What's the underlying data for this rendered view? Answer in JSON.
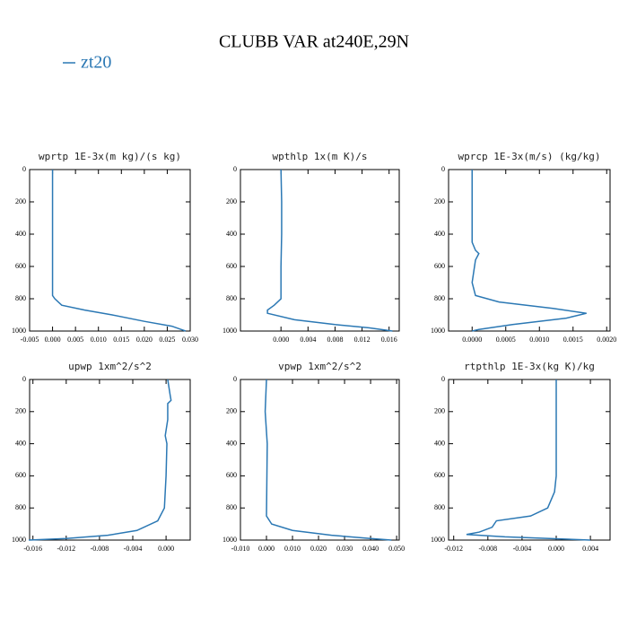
{
  "title": "CLUBB VAR at240E,29N",
  "legend": {
    "label": "zt20",
    "color": "#2b78b4"
  },
  "chart_data": [
    {
      "type": "line",
      "title": "wprtp  1E-3x(m kg)/(s kg)",
      "xlim": [
        -0.005,
        0.03
      ],
      "xticks": [
        -0.005,
        {
          "value": 0,
          "label": "0.000"
        },
        0.005,
        {
          "value": 0.01,
          "label": "0.010"
        },
        0.015,
        {
          "value": 0.02,
          "label": "0.020"
        },
        0.025,
        {
          "value": 0.03,
          "label": "0.030"
        }
      ],
      "ylim": [
        0,
        1000
      ],
      "yticks": [
        0,
        200,
        400,
        600,
        800,
        1000
      ],
      "y_reversed": true,
      "series": [
        {
          "color": "#2b78b4",
          "x": [
            0,
            0,
            0,
            0,
            0,
            0,
            0.0005,
            0.002,
            0.007,
            0.013,
            0.02,
            0.026,
            0.028,
            0.029
          ],
          "y": [
            0,
            200,
            400,
            600,
            700,
            780,
            800,
            840,
            870,
            900,
            940,
            970,
            990,
            1000
          ]
        }
      ]
    },
    {
      "type": "line",
      "title": "wpthlp  1x(m K)/s",
      "xlim": [
        -0.006,
        0.0175
      ],
      "xticks": [
        {
          "value": 0,
          "label": "0.000"
        },
        0.004,
        0.008,
        0.012,
        0.016
      ],
      "ylim": [
        0,
        1000
      ],
      "yticks": [
        0,
        200,
        400,
        600,
        800,
        1000
      ],
      "y_reversed": true,
      "series": [
        {
          "color": "#2b78b4",
          "x": [
            0,
            0.0001,
            0.0001,
            0,
            0,
            -0.001,
            -0.002,
            -0.002,
            0.002,
            0.008,
            0.013,
            0.0165
          ],
          "y": [
            0,
            200,
            400,
            600,
            800,
            840,
            870,
            890,
            930,
            960,
            980,
            1000
          ]
        }
      ]
    },
    {
      "type": "line",
      "title": "wprcp  1E-3x(m/s) (kg/kg)",
      "xlim": [
        -0.00035,
        0.00205
      ],
      "xticks": [
        {
          "value": 0,
          "label": "0.0000"
        },
        0.0005,
        {
          "value": 0.001,
          "label": "0.0010"
        },
        0.0015,
        {
          "value": 0.002,
          "label": "0.0020"
        }
      ],
      "ylim": [
        0,
        1000
      ],
      "yticks": [
        0,
        200,
        400,
        600,
        800,
        1000
      ],
      "y_reversed": true,
      "series": [
        {
          "color": "#2b78b4",
          "x": [
            0,
            0,
            5e-05,
            0.0001,
            5e-05,
            0,
            5e-05,
            0.0004,
            0.0012,
            0.0017,
            0.0014,
            0.0006,
            0.0001,
            0
          ],
          "y": [
            0,
            450,
            500,
            520,
            560,
            700,
            780,
            820,
            860,
            890,
            920,
            960,
            990,
            1000
          ]
        }
      ]
    },
    {
      "type": "line",
      "title": "upwp  1xm^2/s^2",
      "xlim": [
        -0.0164,
        0.0029
      ],
      "xticks": [
        -0.016,
        -0.012,
        -0.008,
        -0.004,
        {
          "value": 0,
          "label": "0.000"
        }
      ],
      "ylim": [
        0,
        1000
      ],
      "yticks": [
        0,
        200,
        400,
        600,
        800,
        1000
      ],
      "y_reversed": true,
      "series": [
        {
          "color": "#2b78b4",
          "x": [
            0.0002,
            0.0005,
            0.0006,
            0.0002,
            0.0002,
            -0.0001,
            0.0001,
            0,
            -0.0002,
            -0.001,
            -0.0035,
            -0.007,
            -0.012,
            -0.0165
          ],
          "y": [
            0,
            100,
            130,
            150,
            250,
            350,
            400,
            600,
            800,
            880,
            940,
            970,
            990,
            1000
          ]
        }
      ]
    },
    {
      "type": "line",
      "title": "vpwp  1xm^2/s^2",
      "xlim": [
        -0.01,
        0.051
      ],
      "xticks": [
        {
          "value": -0.01,
          "label": "-0.010"
        },
        {
          "value": 0,
          "label": "0.000"
        },
        {
          "value": 0.01,
          "label": "0.010"
        },
        {
          "value": 0.02,
          "label": "0.020"
        },
        {
          "value": 0.03,
          "label": "0.030"
        },
        {
          "value": 0.04,
          "label": "0.040"
        },
        {
          "value": 0.05,
          "label": "0.050"
        }
      ],
      "ylim": [
        0,
        1000
      ],
      "yticks": [
        0,
        200,
        400,
        600,
        800,
        1000
      ],
      "y_reversed": true,
      "series": [
        {
          "color": "#2b78b4",
          "x": [
            0,
            -0.0005,
            0.0003,
            0,
            0.002,
            0.01,
            0.025,
            0.04,
            0.048
          ],
          "y": [
            0,
            200,
            400,
            850,
            900,
            940,
            970,
            990,
            1000
          ]
        }
      ]
    },
    {
      "type": "line",
      "title": "rtpthlp  1E-3x(kg K)/kg",
      "xlim": [
        -0.0126,
        0.0063
      ],
      "xticks": [
        -0.012,
        -0.008,
        -0.004,
        {
          "value": 0,
          "label": "0.000"
        },
        0.004
      ],
      "ylim": [
        0,
        1000
      ],
      "yticks": [
        0,
        200,
        400,
        600,
        800,
        1000
      ],
      "y_reversed": true,
      "series": [
        {
          "color": "#2b78b4",
          "x": [
            0,
            0,
            -0.0002,
            -0.001,
            -0.003,
            -0.007,
            -0.0075,
            -0.009,
            -0.0105,
            -0.006,
            0.004
          ],
          "y": [
            0,
            600,
            700,
            800,
            850,
            880,
            920,
            950,
            965,
            980,
            1000
          ]
        }
      ]
    }
  ]
}
